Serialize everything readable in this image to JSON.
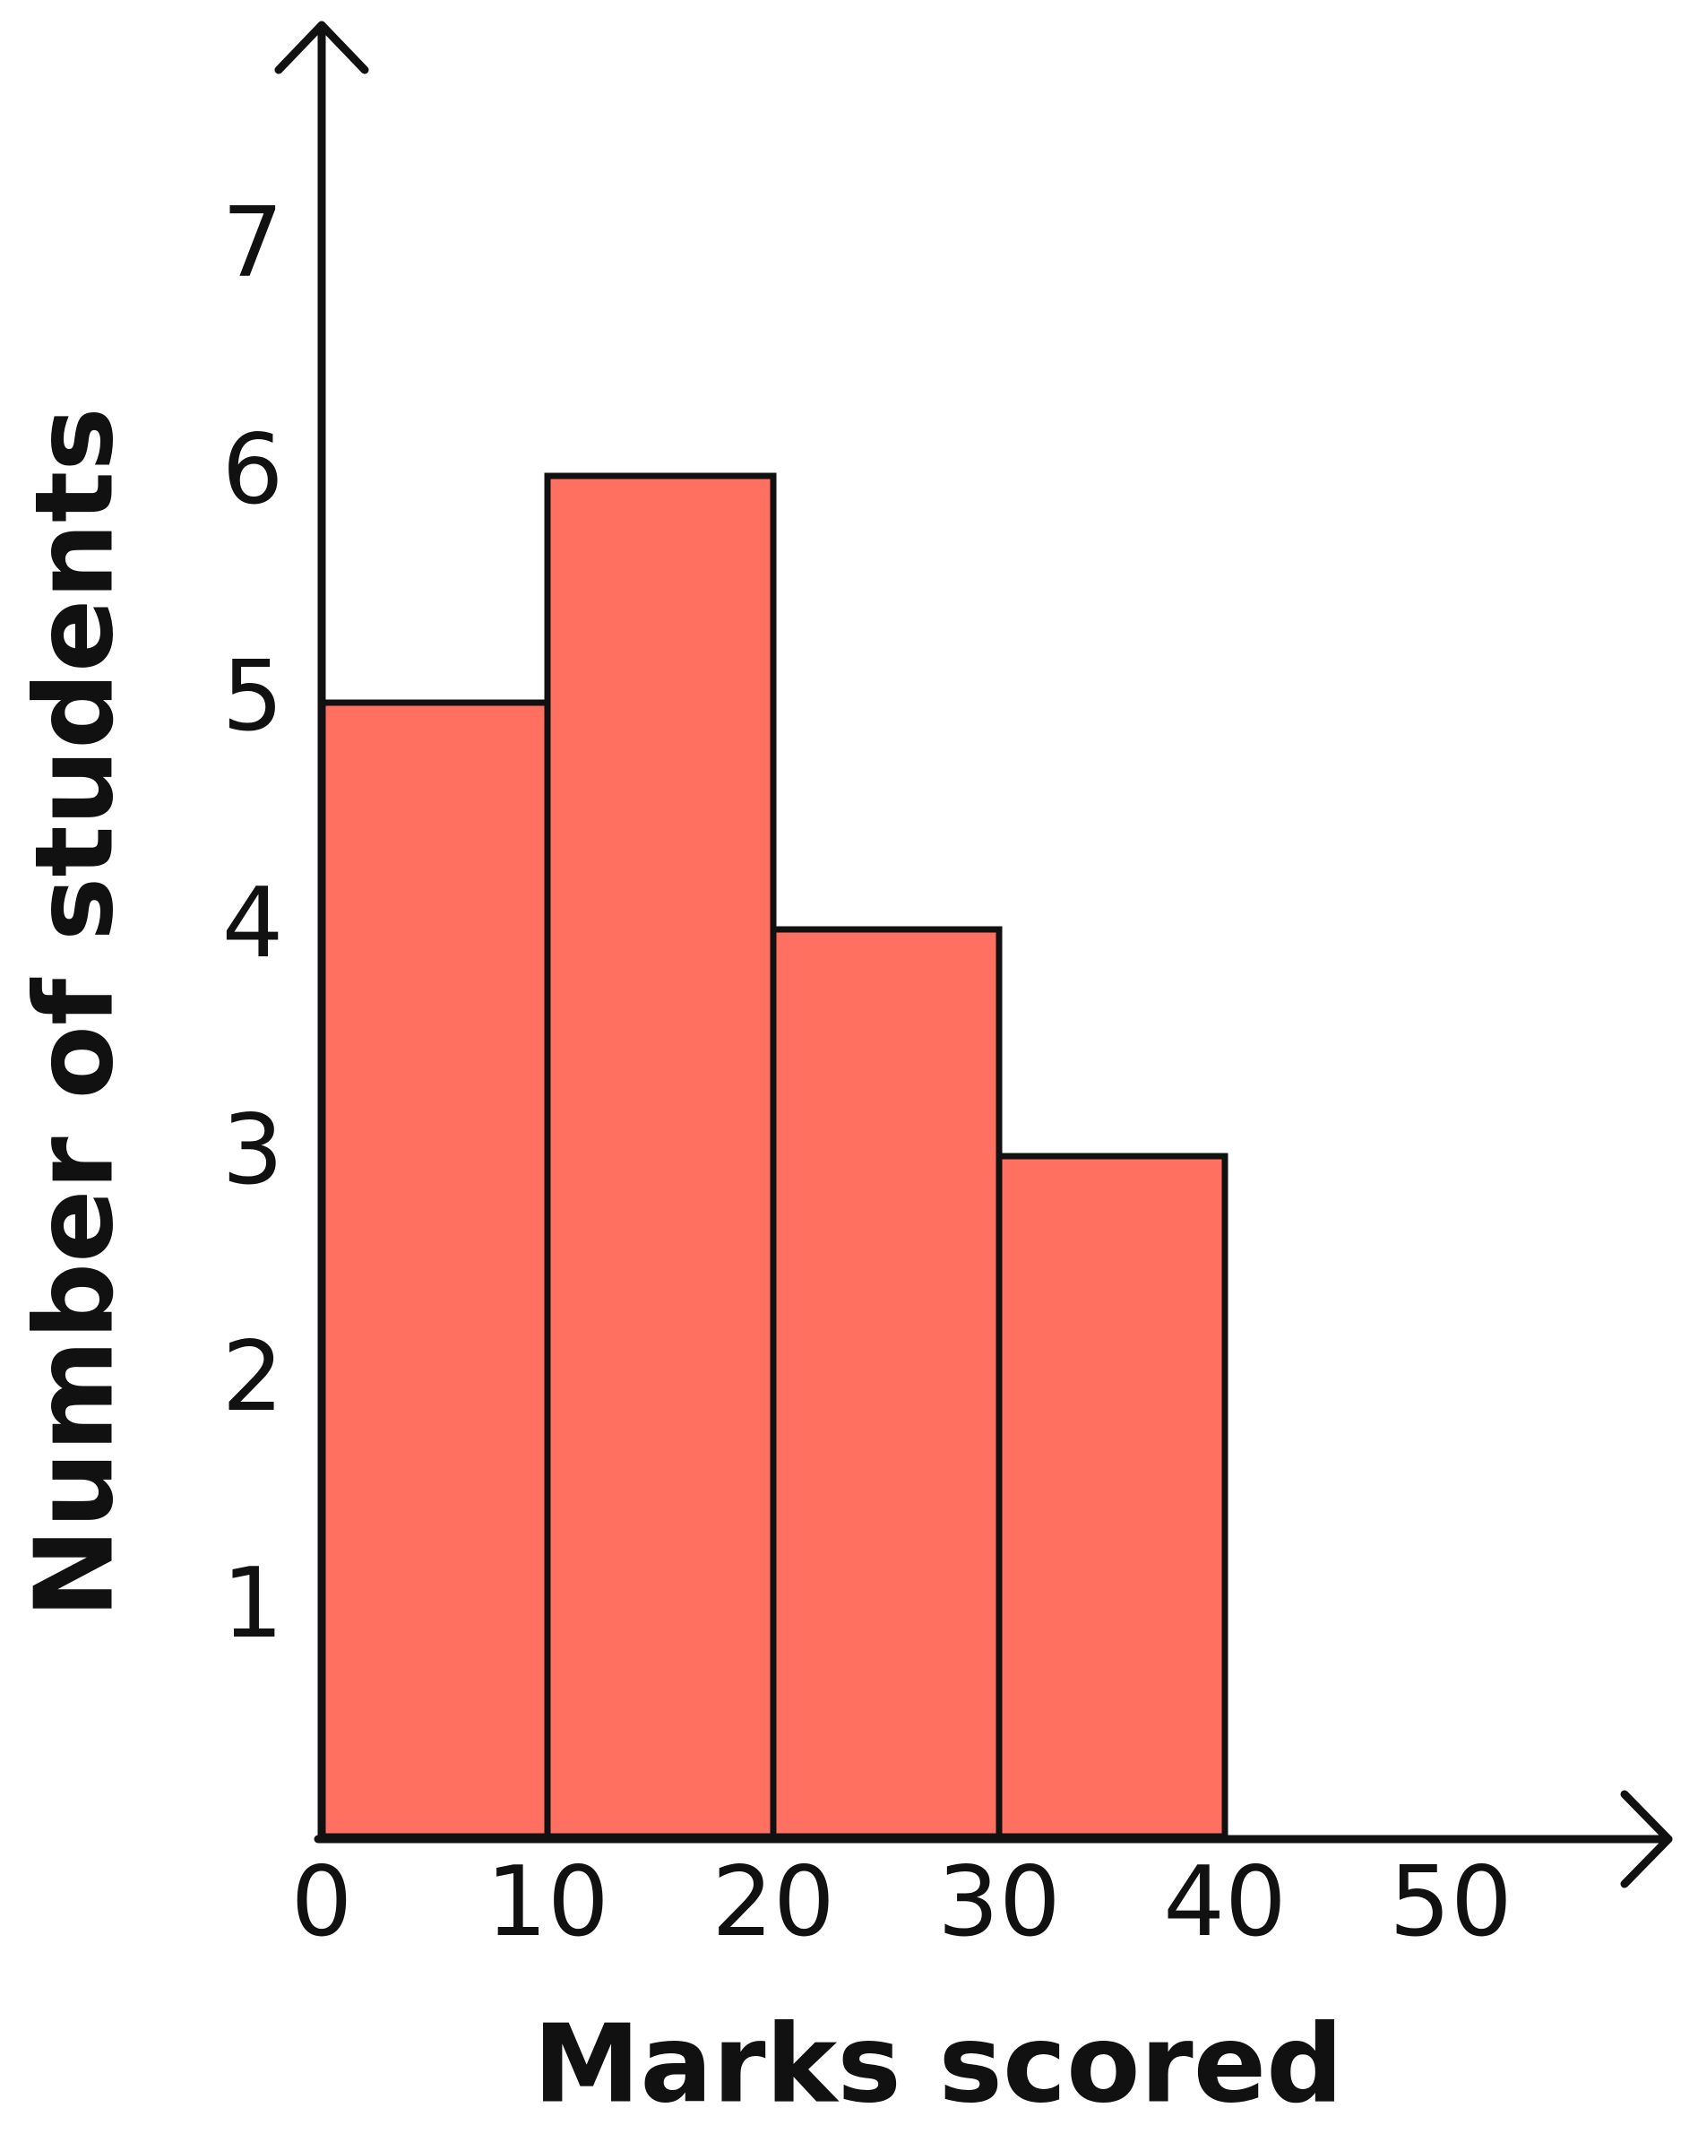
{
  "chart_data": {
    "type": "histogram",
    "x_label": "Marks scored",
    "y_label": "Number of students",
    "bins": [
      0,
      10,
      20,
      30,
      40
    ],
    "values": [
      5,
      6,
      4,
      3
    ],
    "color": "#ff7060",
    "xlim": [
      0,
      60
    ],
    "ylim": [
      0,
      8
    ],
    "xticks": [
      0,
      10,
      20,
      30,
      40,
      50
    ],
    "yticks": [
      1,
      2,
      3,
      4,
      5,
      6,
      7
    ],
    "grid": false
  }
}
